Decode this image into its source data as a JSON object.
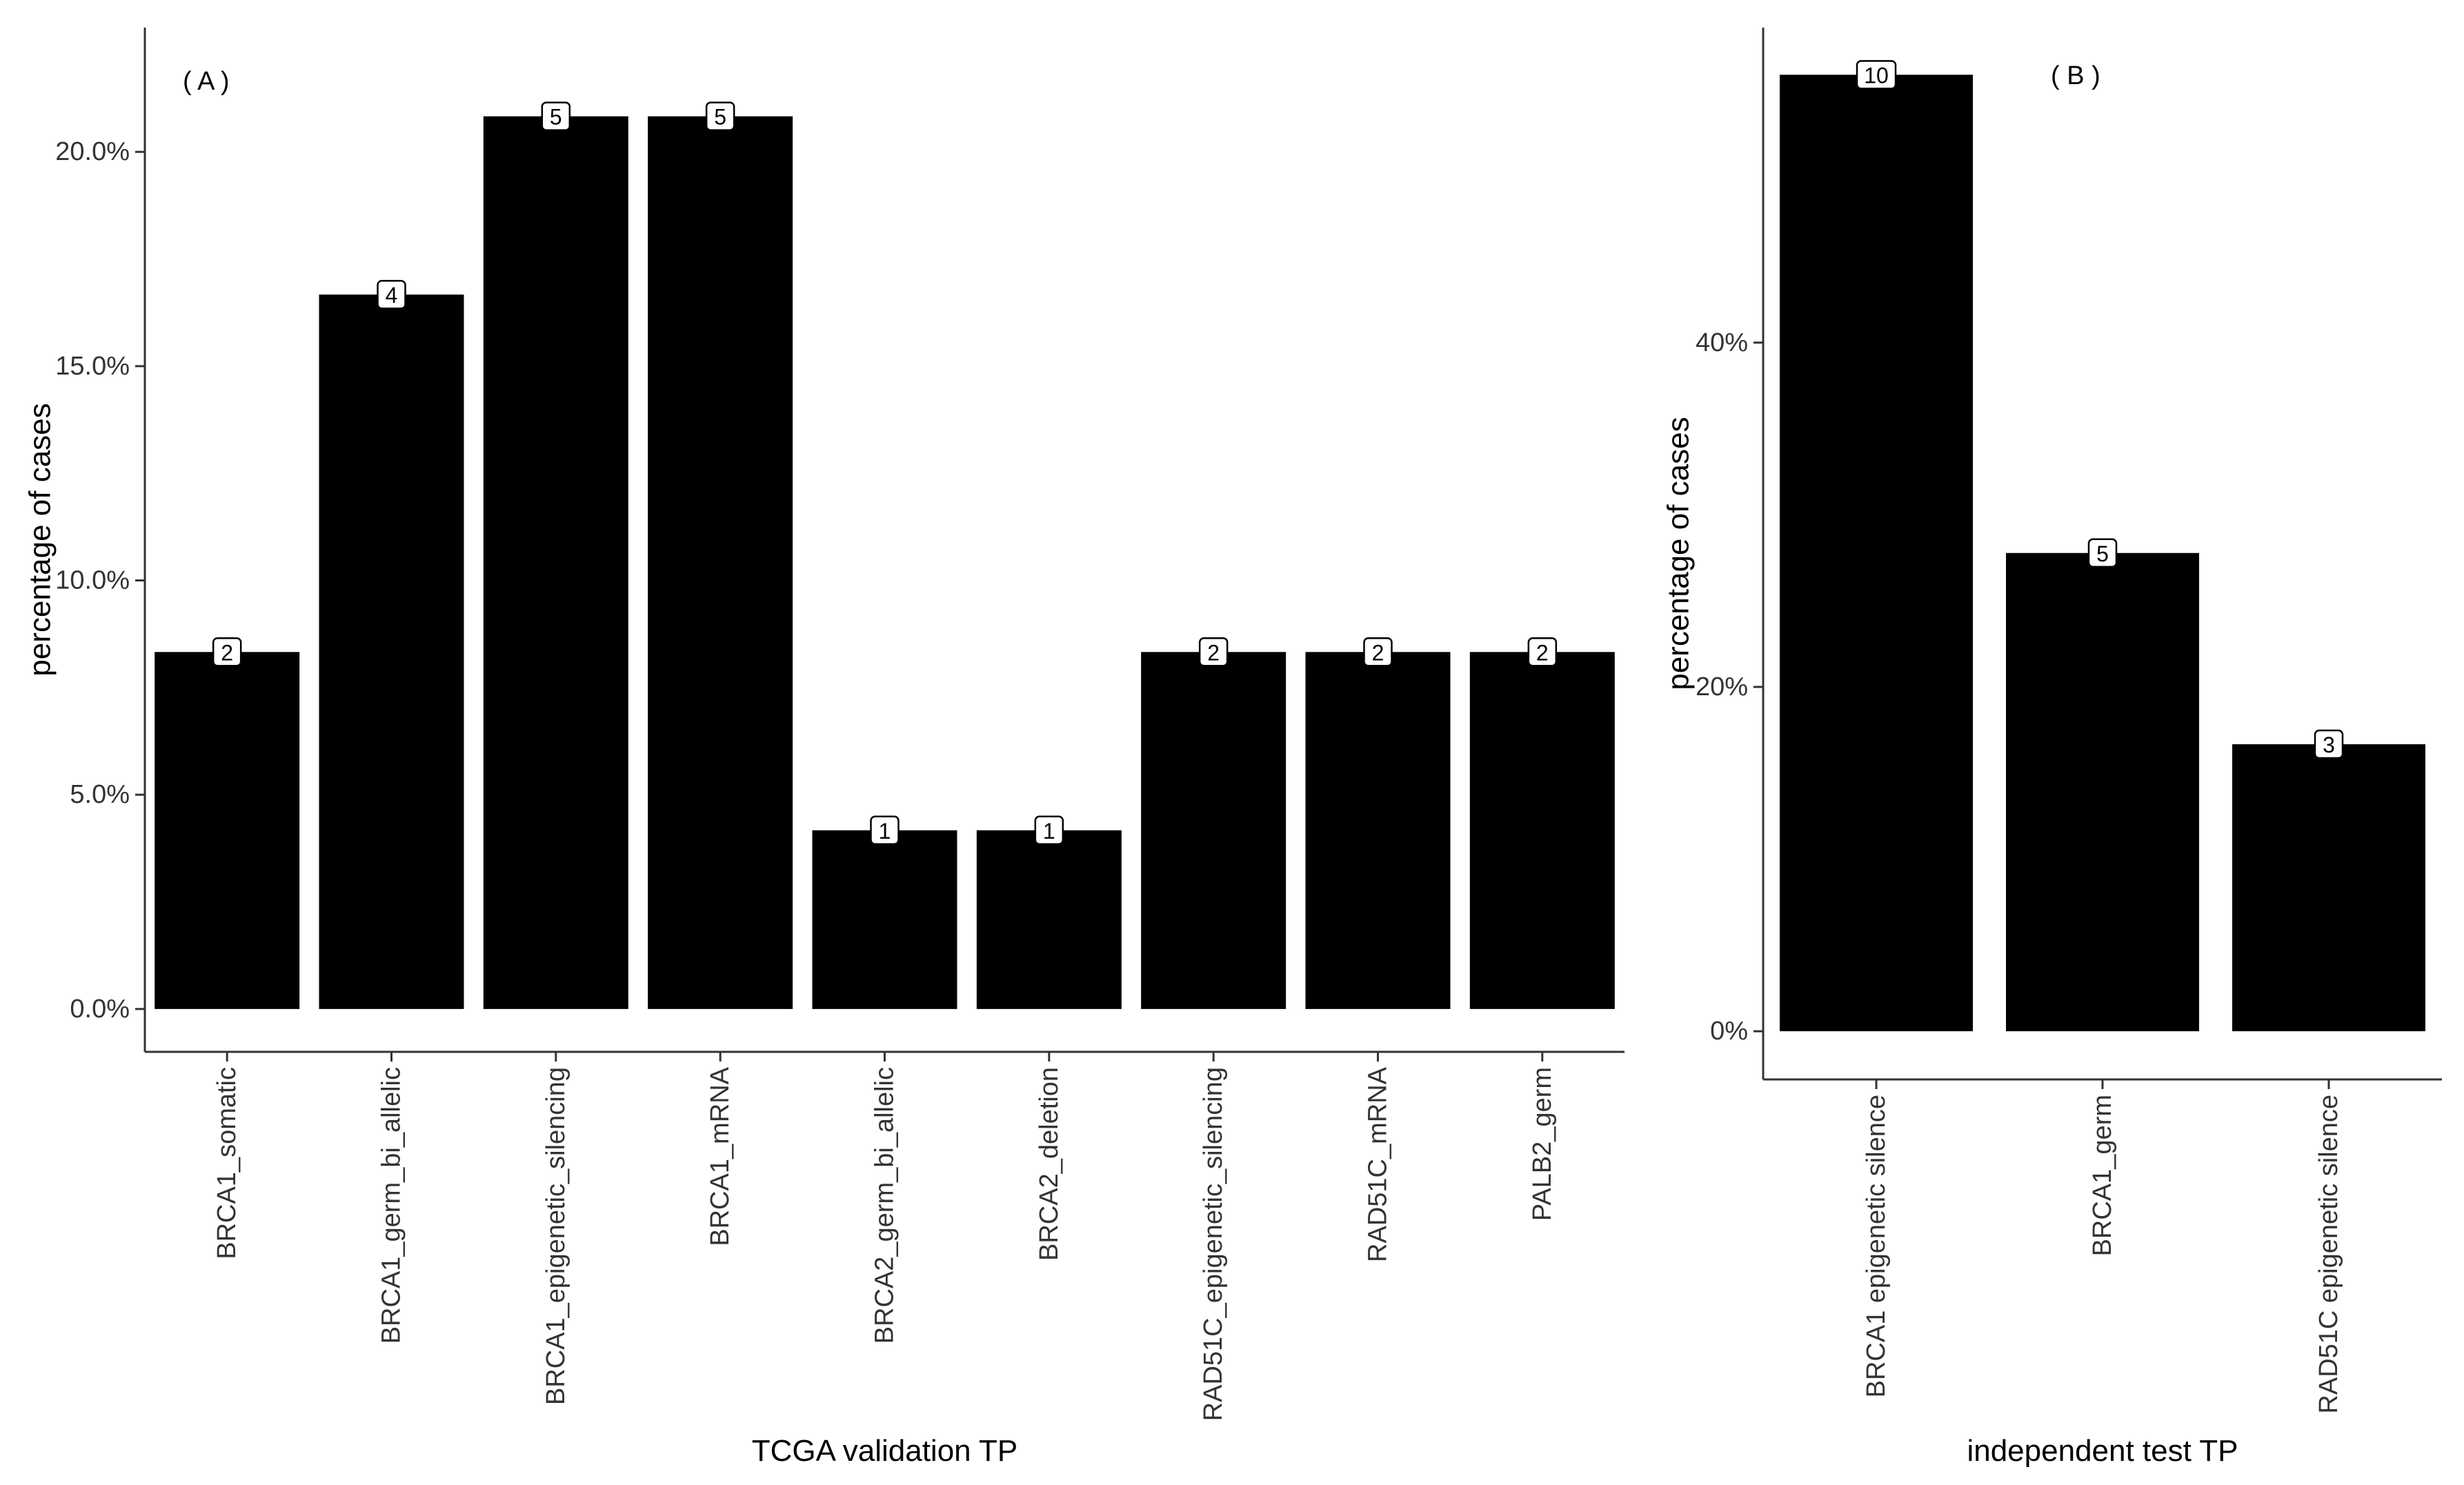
{
  "chart_data": [
    {
      "type": "bar",
      "panel_label": "( A )",
      "xlabel": "TCGA validation TP",
      "ylabel": "percentage of cases",
      "categories": [
        "BRCA1_somatic",
        "BRCA1_germ_bi_allelic",
        "BRCA1_epigenetic_silencing",
        "BRCA1_mRNA",
        "BRCA2_germ_bi_allelic",
        "BRCA2_deletion",
        "RAD51C_epigenetic_silencing",
        "RAD51C_mRNA",
        "PALB2_germ"
      ],
      "values": [
        8.33,
        16.67,
        20.83,
        20.83,
        4.17,
        4.17,
        8.33,
        8.33,
        8.33
      ],
      "counts": [
        2,
        4,
        5,
        5,
        1,
        1,
        2,
        2,
        2
      ],
      "ylim": [
        -1.0,
        22.9
      ],
      "yticks": [
        0,
        5,
        10,
        15,
        20
      ],
      "ytick_labels": [
        "0.0%",
        "5.0%",
        "10.0%",
        "15.0%",
        "20.0%"
      ],
      "bar_color": "#000000",
      "grid": false,
      "legend": "none"
    },
    {
      "type": "bar",
      "panel_label": "( B )",
      "xlabel": "independent test TP",
      "ylabel": "percentage of cases",
      "categories": [
        "BRCA1 epigenetic silence",
        "BRCA1_germ",
        "RAD51C  epigenetic silence"
      ],
      "values": [
        55.56,
        27.78,
        16.67
      ],
      "counts": [
        10,
        5,
        3
      ],
      "ylim": [
        -2.8,
        58.3
      ],
      "yticks": [
        0,
        20,
        40
      ],
      "ytick_labels": [
        "0%",
        "20%",
        "40%"
      ],
      "bar_color": "#000000",
      "grid": false,
      "legend": "none"
    }
  ]
}
